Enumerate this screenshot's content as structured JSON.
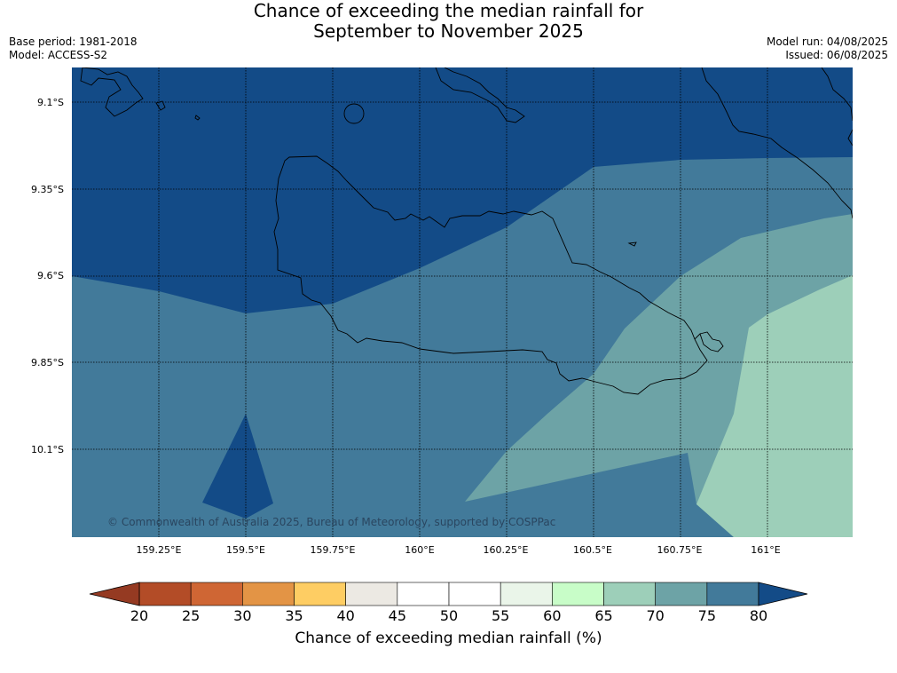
{
  "title_line1": "Chance of exceeding the median rainfall for",
  "title_line2": "September to November 2025",
  "meta_left": [
    "Base period: 1981-2018",
    "Model: ACCESS-S2"
  ],
  "meta_right": [
    "Model run: 04/08/2025",
    "Issued: 06/08/2025"
  ],
  "map": {
    "lat_labels": [
      "9.1°S",
      "9.35°S",
      "9.6°S",
      "9.85°S",
      "10.1°S"
    ],
    "lon_labels": [
      "159.25°E",
      "159.5°E",
      "159.75°E",
      "160°E",
      "160.25°E",
      "160.5°E",
      "160.75°E",
      "161°E"
    ],
    "copyright": "© Commonwealth of Australia 2025, Bureau of Meteorology, supported by COSPPac",
    "colors": {
      "above_80": "#134b87",
      "75_80": "#427a9a",
      "70_75": "#6da3a6",
      "65_70": "#9dcfb9"
    }
  },
  "colorbar": {
    "title": "Chance of exceeding median rainfall (%)",
    "ticks": [
      "20",
      "25",
      "30",
      "35",
      "40",
      "45",
      "50",
      "55",
      "60",
      "65",
      "70",
      "75",
      "80"
    ],
    "colors": [
      "#b34c27",
      "#cf6634",
      "#e39445",
      "#fecd63",
      "#ece9e3",
      "#ffffff",
      "#ffffff",
      "#eaf5e9",
      "#c8fdc8",
      "#9dcfb9",
      "#6da3a6",
      "#427a9a"
    ],
    "low_extend_color": "#953a22",
    "high_extend_color": "#134b87"
  }
}
